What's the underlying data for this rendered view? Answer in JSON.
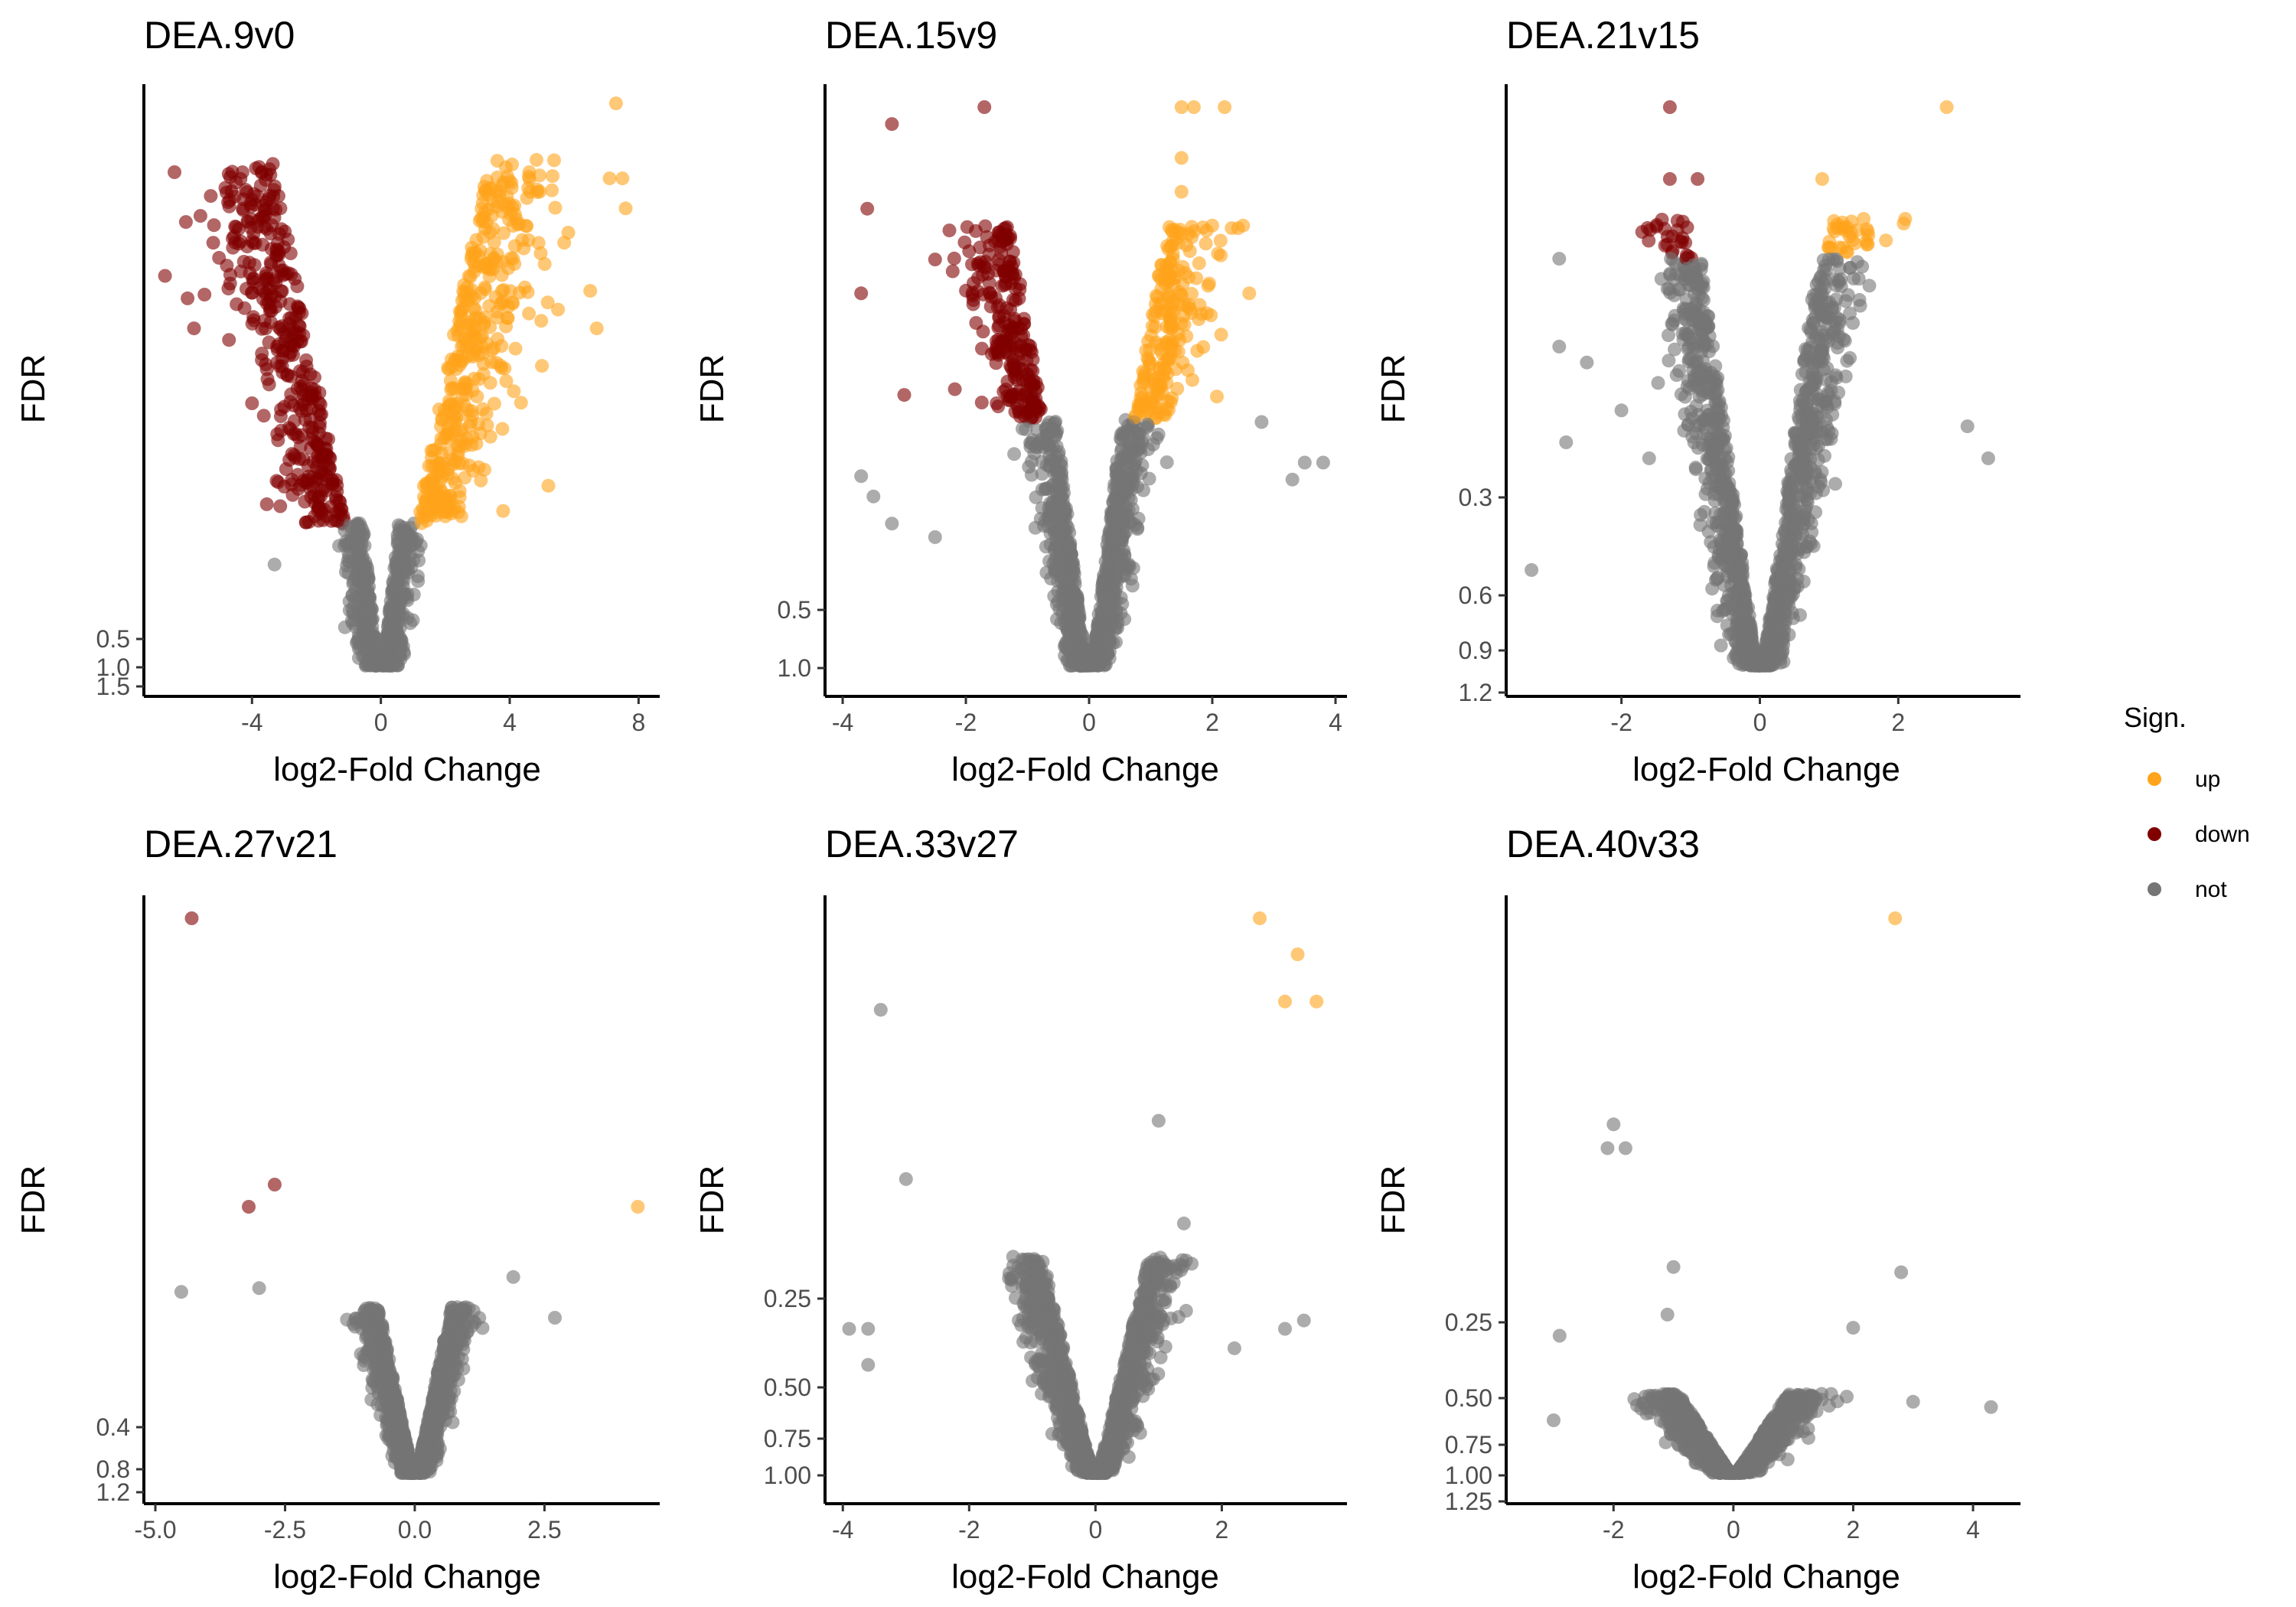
{
  "colors": {
    "up": "#FFA41B",
    "down": "#800000",
    "not": "#757575"
  },
  "legend": {
    "title": "Sign.",
    "placement": "right",
    "items": [
      {
        "key": "up",
        "label": "up"
      },
      {
        "key": "down",
        "label": "down"
      },
      {
        "key": "not",
        "label": "not"
      }
    ]
  },
  "chart_data": [
    {
      "type": "scatter",
      "title": "DEA.9v0",
      "xlabel": "log2-Fold Change",
      "ylabel": "FDR",
      "xlim": [
        -7,
        8.3
      ],
      "xticks": [
        -4,
        0,
        4,
        8
      ],
      "y_scale": "-log10 (reversed)",
      "ylim_neglog10": [
        0,
        14.9
      ],
      "yticks": [
        0.5,
        1.0,
        1.5
      ],
      "ytick_labels": [
        "0.5",
        "1.0",
        "1.5"
      ],
      "cloud": {
        "not_max": 3.8,
        "sig_max": 13.5,
        "not_xspread": 2.4,
        "sig_xspread": 4.8
      },
      "outliers": {
        "up": [
          [
            7.3,
            15.0
          ],
          [
            7.1,
            13.0
          ],
          [
            7.5,
            13.0
          ],
          [
            7.6,
            12.2
          ],
          [
            6.5,
            10.0
          ],
          [
            6.7,
            9.0
          ],
          [
            5.5,
            9.5
          ],
          [
            5.0,
            8.0
          ],
          [
            5.2,
            4.8
          ]
        ],
        "down": [
          [
            -6.7,
            10.4
          ],
          [
            -5.6,
            12.0
          ],
          [
            -5.8,
            9.0
          ],
          [
            -6.0,
            9.8
          ],
          [
            -4.0,
            7.0
          ]
        ],
        "not": [
          [
            -3.3,
            2.7
          ]
        ]
      }
    },
    {
      "type": "scatter",
      "title": "DEA.15v9",
      "xlabel": "log2-Fold Change",
      "ylabel": "FDR",
      "xlim": [
        -4.1,
        4.0
      ],
      "xticks": [
        -4,
        -2,
        0,
        2,
        4
      ],
      "y_scale": "-log10 (reversed)",
      "ylim_neglog10": [
        0,
        16.5
      ],
      "yticks": [
        0.5,
        1.0
      ],
      "ytick_labels": [
        "0.5",
        "1.0"
      ],
      "cloud": {
        "not_max": 7.3,
        "sig_max": 13.0,
        "not_xspread": 1.3,
        "sig_xspread": 1.8
      },
      "outliers": {
        "up": [
          [
            1.5,
            16.5
          ],
          [
            1.7,
            16.5
          ],
          [
            2.2,
            16.5
          ],
          [
            1.5,
            15.0
          ],
          [
            1.5,
            14.0
          ],
          [
            2.0,
            13.0
          ],
          [
            2.5,
            13.0
          ],
          [
            2.6,
            11.0
          ]
        ],
        "down": [
          [
            -3.2,
            16.0
          ],
          [
            -1.7,
            16.5
          ],
          [
            -3.6,
            13.5
          ],
          [
            -3.7,
            11.0
          ],
          [
            -3.0,
            8.0
          ],
          [
            -2.5,
            12.0
          ]
        ],
        "not": [
          [
            -3.7,
            5.6
          ],
          [
            -3.5,
            5.0
          ],
          [
            -3.2,
            4.2
          ],
          [
            -2.5,
            3.8
          ],
          [
            2.8,
            7.2
          ],
          [
            3.3,
            5.5
          ],
          [
            3.5,
            6.0
          ],
          [
            3.8,
            6.0
          ]
        ]
      }
    },
    {
      "type": "scatter",
      "title": "DEA.21v15",
      "xlabel": "log2-Fold Change",
      "ylabel": "FDR",
      "xlim": [
        -3.5,
        3.6
      ],
      "xticks": [
        -2,
        0,
        2
      ],
      "y_scale": "-log10 (reversed)",
      "ylim_neglog10": [
        0,
        3.5
      ],
      "yticks": [
        0.3,
        0.6,
        0.9,
        1.2
      ],
      "ytick_labels": [
        "0.3",
        "0.6",
        "0.9",
        "1.2"
      ],
      "cloud": {
        "not_max": 2.55,
        "sig_max": 2.8,
        "not_xspread": 1.3,
        "sig_xspread": 1.5
      },
      "outliers": {
        "up": [
          [
            2.7,
            3.5
          ],
          [
            0.9,
            3.05
          ],
          [
            1.5,
            2.8
          ],
          [
            2.1,
            2.8
          ]
        ],
        "down": [
          [
            -1.3,
            3.5
          ],
          [
            -1.3,
            3.05
          ],
          [
            -0.9,
            3.05
          ]
        ],
        "not": [
          [
            -2.9,
            2.55
          ],
          [
            -2.9,
            2.0
          ],
          [
            -2.5,
            1.9
          ],
          [
            -2.8,
            1.4
          ],
          [
            -1.6,
            1.3
          ],
          [
            3.0,
            1.5
          ],
          [
            3.3,
            1.3
          ],
          [
            -3.3,
            0.6
          ],
          [
            -2.0,
            1.6
          ]
        ]
      }
    },
    {
      "type": "scatter",
      "title": "DEA.27v21",
      "xlabel": "log2-Fold Change",
      "ylabel": "FDR",
      "xlim": [
        -5.0,
        4.5
      ],
      "xticks": [
        -5.0,
        -2.5,
        0.0,
        2.5
      ],
      "xtick_labels": [
        "-5.0",
        "-2.5",
        "0.0",
        "2.5"
      ],
      "y_scale": "-log10 (reversed)",
      "ylim_neglog10": [
        0,
        1.5
      ],
      "yticks": [
        0.4,
        0.8,
        1.2
      ],
      "ytick_labels": [
        "0.4",
        "0.8",
        "1.2"
      ],
      "cloud": {
        "not_max": 0.45,
        "sig_max": 0.45,
        "not_xspread": 1.0,
        "sig_xspread": 1.0
      },
      "outliers": {
        "up": [
          [
            4.3,
            0.72
          ]
        ],
        "down": [
          [
            -4.3,
            1.5
          ],
          [
            -2.7,
            0.78
          ],
          [
            -3.2,
            0.72
          ]
        ],
        "not": [
          [
            -4.5,
            0.49
          ],
          [
            -3.0,
            0.5
          ],
          [
            2.7,
            0.42
          ],
          [
            1.9,
            0.53
          ]
        ]
      }
    },
    {
      "type": "scatter",
      "title": "DEA.33v27",
      "xlabel": "log2-Fold Change",
      "ylabel": "FDR",
      "xlim": [
        -4.1,
        3.8
      ],
      "xticks": [
        -4,
        -2,
        0,
        2
      ],
      "y_scale": "-log10 (reversed)",
      "ylim_neglog10": [
        0,
        2.0
      ],
      "yticks": [
        0.25,
        0.5,
        0.75,
        1.0
      ],
      "ytick_labels": [
        "0.25",
        "0.50",
        "0.75",
        "1.00"
      ],
      "cloud": {
        "not_max": 0.78,
        "sig_max": 0.78,
        "not_xspread": 1.2,
        "sig_xspread": 1.2
      },
      "outliers": {
        "up": [
          [
            2.6,
            2.0
          ],
          [
            3.2,
            1.87
          ],
          [
            3.0,
            1.7
          ],
          [
            3.5,
            1.7
          ]
        ],
        "down": [],
        "not": [
          [
            -3.4,
            1.67
          ],
          [
            1.0,
            1.27
          ],
          [
            -3.0,
            1.06
          ],
          [
            -3.9,
            0.52
          ],
          [
            -3.6,
            0.52
          ],
          [
            -3.6,
            0.39
          ],
          [
            2.2,
            0.45
          ],
          [
            3.3,
            0.55
          ],
          [
            3.0,
            0.52
          ],
          [
            1.4,
            0.9
          ]
        ]
      }
    },
    {
      "type": "scatter",
      "title": "DEA.40v33",
      "xlabel": "log2-Fold Change",
      "ylabel": "FDR",
      "xlim": [
        -3.6,
        4.6
      ],
      "xticks": [
        -2,
        0,
        2,
        4
      ],
      "y_scale": "-log10 (reversed)",
      "ylim_neglog10": [
        0,
        2.1
      ],
      "yticks": [
        0.25,
        0.5,
        0.75,
        1.0,
        1.25
      ],
      "ytick_labels": [
        "0.25",
        "0.50",
        "0.75",
        "1.00",
        "1.25"
      ],
      "cloud": {
        "not_max": 0.3,
        "sig_max": 0.3,
        "not_xspread": 1.3,
        "sig_xspread": 1.3
      },
      "outliers": {
        "up": [
          [
            2.7,
            2.1
          ]
        ],
        "down": [],
        "not": [
          [
            -2.0,
            1.32
          ],
          [
            -2.1,
            1.23
          ],
          [
            -1.8,
            1.23
          ],
          [
            -1.0,
            0.78
          ],
          [
            -1.1,
            0.6
          ],
          [
            -2.9,
            0.52
          ],
          [
            2.8,
            0.76
          ],
          [
            4.3,
            0.25
          ],
          [
            -3.0,
            0.2
          ],
          [
            3.0,
            0.27
          ],
          [
            2.0,
            0.55
          ]
        ]
      }
    }
  ]
}
